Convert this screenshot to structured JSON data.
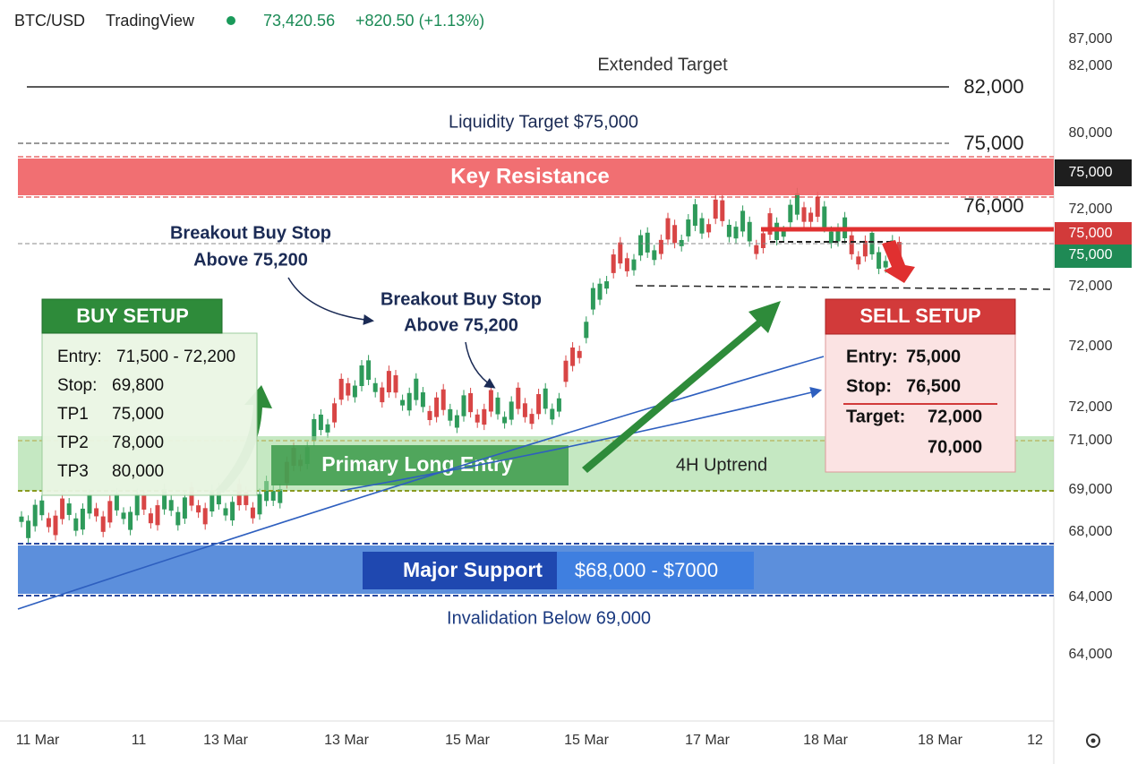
{
  "header": {
    "symbol": "BTC/USD",
    "source": "TradingView",
    "price": "73,420.56",
    "change": "+820.50 (+1.13%)"
  },
  "price_axis": [
    "87,000",
    "82,000",
    "80,000",
    "75,000",
    "72,000",
    "75,000",
    "75,000",
    "72,000",
    "72,000",
    "72,000",
    "71,000",
    "69,000",
    "68,000",
    "64,000",
    "64,000"
  ],
  "date_axis": [
    "11 Mar",
    "11",
    "13 Mar",
    "13 Mar",
    "15 Mar",
    "15 Mar",
    "17 Mar",
    "18 Mar",
    "18 Mar",
    "12"
  ],
  "levels": {
    "extended_target": {
      "text": "Extended Target",
      "price": "82,000"
    },
    "liquidity_target": {
      "text": "Liquidity Target $75,000",
      "price": "75,000"
    },
    "key_resistance": "Key Resistance",
    "resistance_price": "76,000"
  },
  "annotations": [
    {
      "line1": "Breakout Buy Stop",
      "line2": "Above 75,200"
    },
    {
      "line1": "Breakout Buy Stop",
      "line2": "Above 75,200"
    }
  ],
  "buy_setup": {
    "title": "BUY SETUP",
    "rows": [
      [
        "Entry:",
        "71,500 - 72,200"
      ],
      [
        "Stop:",
        "69,800"
      ],
      [
        "TP1",
        "75,000"
      ],
      [
        "TP2",
        "78,000"
      ],
      [
        "TP3",
        "80,000"
      ]
    ]
  },
  "sell_setup": {
    "title": "SELL SETUP",
    "rows": [
      [
        "Entry:",
        "75,000"
      ],
      [
        "Stop:",
        "76,500"
      ],
      [
        "Target:",
        "72,000"
      ],
      [
        "",
        "70,000"
      ]
    ]
  },
  "zones": {
    "primary_long": "Primary Long Entry",
    "uptrend": "4H Uptrend",
    "major_support": "Major Support",
    "support_range": "$68,000 - $7000",
    "invalidation": "Invalidation Below 69,000"
  }
}
